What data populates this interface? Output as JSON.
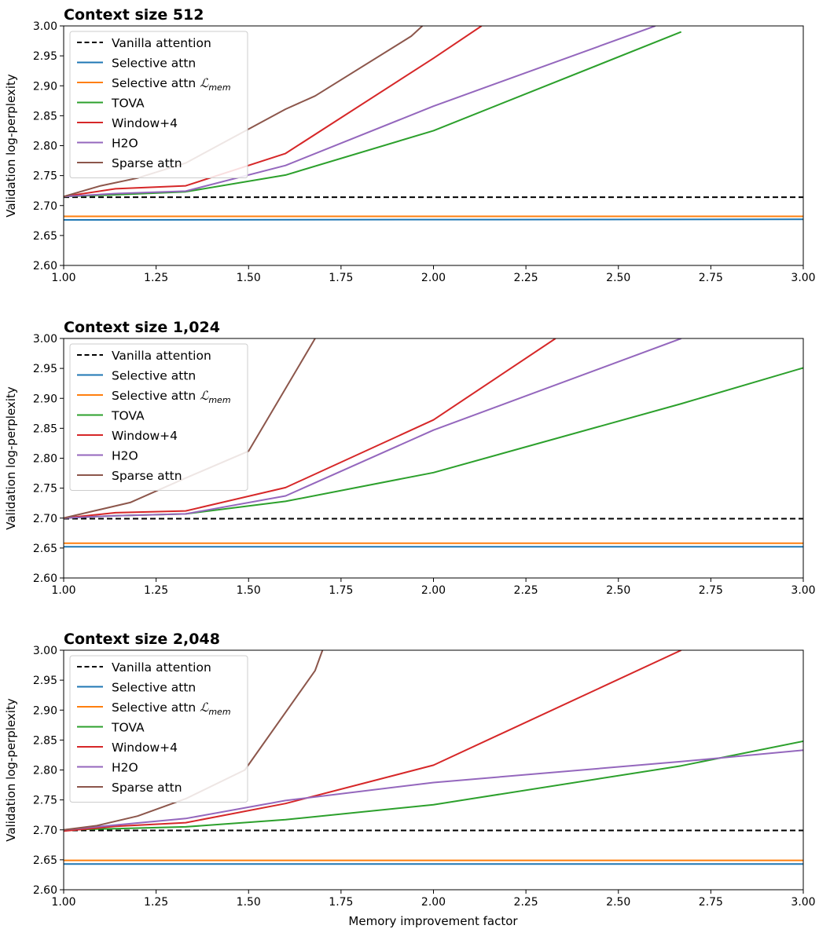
{
  "figure": {
    "xlabel": "Memory improvement factor"
  },
  "chart_data": [
    {
      "type": "line",
      "title": "Context size 512",
      "xlabel": "",
      "ylabel": "Validation log-perplexity",
      "xlim": [
        1.0,
        3.0
      ],
      "ylim": [
        2.6,
        3.0
      ],
      "xticks": [
        "1.00",
        "1.25",
        "1.50",
        "1.75",
        "2.00",
        "2.25",
        "2.50",
        "2.75",
        "3.00"
      ],
      "yticks": [
        "2.60",
        "2.65",
        "2.70",
        "2.75",
        "2.80",
        "2.85",
        "2.90",
        "2.95",
        "3.00"
      ],
      "grid": false,
      "legend_position": "top-left",
      "series": [
        {
          "name": "Vanilla attention",
          "color": "#000000",
          "dash": true,
          "x": [
            1.0,
            3.0
          ],
          "y": [
            2.714,
            2.714
          ]
        },
        {
          "name": "Selective attn",
          "color": "#1f77b4",
          "x": [
            1.0,
            3.0
          ],
          "y": [
            2.676,
            2.677
          ]
        },
        {
          "name": "Selective attn ℒmem",
          "label_base": "Selective attn ",
          "label_sub": "mem",
          "color": "#ff7f0e",
          "x": [
            1.0,
            3.0
          ],
          "y": [
            2.682,
            2.682
          ]
        },
        {
          "name": "TOVA",
          "color": "#2ca02c",
          "x": [
            1.0,
            1.14,
            1.33,
            1.6,
            2.0,
            2.67
          ],
          "y": [
            2.715,
            2.718,
            2.723,
            2.751,
            2.825,
            2.99
          ]
        },
        {
          "name": "Window+4",
          "color": "#d62728",
          "x": [
            1.0,
            1.14,
            1.33,
            1.6,
            2.0,
            2.13
          ],
          "y": [
            2.715,
            2.728,
            2.733,
            2.787,
            2.946,
            3.0
          ]
        },
        {
          "name": "H2O",
          "color": "#9467bd",
          "x": [
            1.0,
            1.14,
            1.33,
            1.6,
            2.0,
            2.6
          ],
          "y": [
            2.715,
            2.72,
            2.724,
            2.767,
            2.866,
            3.0
          ]
        },
        {
          "name": "Sparse attn",
          "color": "#8c564b",
          "x": [
            1.0,
            1.1,
            1.2,
            1.33,
            1.6,
            1.68,
            1.94,
            1.97
          ],
          "y": [
            2.715,
            2.733,
            2.746,
            2.771,
            2.861,
            2.883,
            2.983,
            3.0
          ]
        }
      ]
    },
    {
      "type": "line",
      "title": "Context size 1,024",
      "xlabel": "",
      "ylabel": "Validation log-perplexity",
      "xlim": [
        1.0,
        3.0
      ],
      "ylim": [
        2.6,
        3.0
      ],
      "xticks": [
        "1.00",
        "1.25",
        "1.50",
        "1.75",
        "2.00",
        "2.25",
        "2.50",
        "2.75",
        "3.00"
      ],
      "yticks": [
        "2.60",
        "2.65",
        "2.70",
        "2.75",
        "2.80",
        "2.85",
        "2.90",
        "2.95",
        "3.00"
      ],
      "grid": false,
      "legend_position": "top-left",
      "series": [
        {
          "name": "Vanilla attention",
          "color": "#000000",
          "dash": true,
          "x": [
            1.0,
            3.0
          ],
          "y": [
            2.699,
            2.699
          ]
        },
        {
          "name": "Selective attn",
          "color": "#1f77b4",
          "x": [
            1.0,
            3.0
          ],
          "y": [
            2.652,
            2.652
          ]
        },
        {
          "name": "Selective attn ℒmem",
          "label_base": "Selective attn ",
          "label_sub": "mem",
          "color": "#ff7f0e",
          "x": [
            1.0,
            3.0
          ],
          "y": [
            2.658,
            2.658
          ]
        },
        {
          "name": "TOVA",
          "color": "#2ca02c",
          "x": [
            1.0,
            1.14,
            1.33,
            1.6,
            2.0,
            2.67,
            3.0
          ],
          "y": [
            2.7,
            2.704,
            2.707,
            2.728,
            2.776,
            2.891,
            2.951
          ]
        },
        {
          "name": "Window+4",
          "color": "#d62728",
          "x": [
            1.0,
            1.14,
            1.33,
            1.6,
            2.0,
            2.33
          ],
          "y": [
            2.7,
            2.709,
            2.712,
            2.751,
            2.864,
            3.0
          ]
        },
        {
          "name": "H2O",
          "color": "#9467bd",
          "x": [
            1.0,
            1.14,
            1.33,
            1.6,
            2.0,
            2.67
          ],
          "y": [
            2.7,
            2.704,
            2.707,
            2.737,
            2.847,
            3.0
          ]
        },
        {
          "name": "Sparse attn",
          "color": "#8c564b",
          "x": [
            1.0,
            1.18,
            1.33,
            1.5,
            1.68
          ],
          "y": [
            2.7,
            2.726,
            2.767,
            2.812,
            3.0
          ]
        }
      ]
    },
    {
      "type": "line",
      "title": "Context size 2,048",
      "xlabel": "Memory improvement factor",
      "ylabel": "Validation log-perplexity",
      "xlim": [
        1.0,
        3.0
      ],
      "ylim": [
        2.6,
        3.0
      ],
      "xticks": [
        "1.00",
        "1.25",
        "1.50",
        "1.75",
        "2.00",
        "2.25",
        "2.50",
        "2.75",
        "3.00"
      ],
      "yticks": [
        "2.60",
        "2.65",
        "2.70",
        "2.75",
        "2.80",
        "2.85",
        "2.90",
        "2.95",
        "3.00"
      ],
      "grid": false,
      "legend_position": "top-left",
      "series": [
        {
          "name": "Vanilla attention",
          "color": "#000000",
          "dash": true,
          "x": [
            1.0,
            3.0
          ],
          "y": [
            2.699,
            2.699
          ]
        },
        {
          "name": "Selective attn",
          "color": "#1f77b4",
          "x": [
            1.0,
            3.0
          ],
          "y": [
            2.643,
            2.643
          ]
        },
        {
          "name": "Selective attn ℒmem",
          "label_base": "Selective attn ",
          "label_sub": "mem",
          "color": "#ff7f0e",
          "x": [
            1.0,
            3.0
          ],
          "y": [
            2.649,
            2.649
          ]
        },
        {
          "name": "TOVA",
          "color": "#2ca02c",
          "x": [
            1.0,
            1.14,
            1.33,
            1.6,
            2.0,
            2.67,
            3.0
          ],
          "y": [
            2.7,
            2.702,
            2.705,
            2.717,
            2.742,
            2.807,
            2.848
          ]
        },
        {
          "name": "Window+4",
          "color": "#d62728",
          "x": [
            1.0,
            1.14,
            1.33,
            1.6,
            2.0,
            2.67
          ],
          "y": [
            2.698,
            2.706,
            2.712,
            2.744,
            2.808,
            3.0
          ]
        },
        {
          "name": "H2O",
          "color": "#9467bd",
          "x": [
            1.0,
            1.14,
            1.33,
            1.6,
            2.0,
            2.67,
            3.0
          ],
          "y": [
            2.7,
            2.708,
            2.719,
            2.749,
            2.779,
            2.814,
            2.833
          ]
        },
        {
          "name": "Sparse attn",
          "color": "#8c564b",
          "x": [
            1.0,
            1.09,
            1.2,
            1.33,
            1.49,
            1.68,
            1.7
          ],
          "y": [
            2.7,
            2.707,
            2.723,
            2.752,
            2.8,
            2.966,
            3.0
          ]
        }
      ]
    }
  ]
}
